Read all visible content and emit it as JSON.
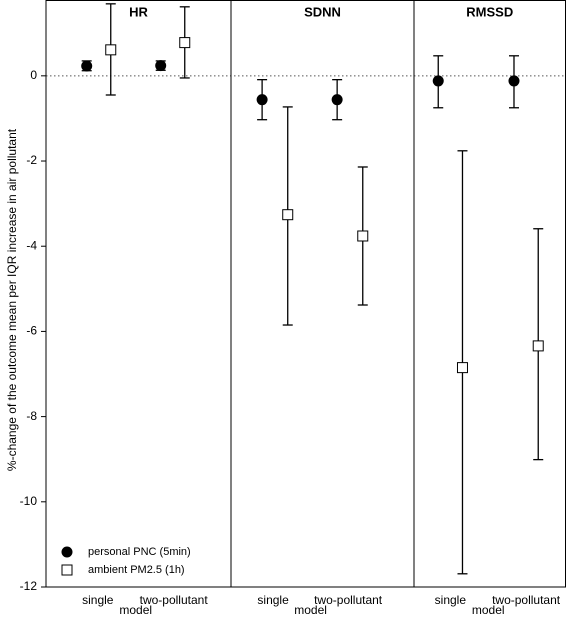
{
  "chart_data": {
    "type": "errorbar",
    "ylabel": "%-change of the outcome mean per IQR increase in air pollutant",
    "xlabel": "model",
    "categories": [
      "single",
      "two-pollutant"
    ],
    "ylim": [
      -12,
      1.78
    ],
    "yticks": [
      -12,
      -10,
      -8,
      -6,
      -4,
      -2,
      0
    ],
    "series": [
      {
        "name": "personal PNC (5min)",
        "marker": "circle",
        "color": "#000000"
      },
      {
        "name": "ambient PM2.5 (1h)",
        "marker": "square",
        "color": "#ffffff"
      }
    ],
    "panels": [
      {
        "title": "HR",
        "series": [
          {
            "values": [
              0.23,
              0.24
            ],
            "lower": [
              0.12,
              0.13
            ],
            "upper": [
              0.35,
              0.35
            ]
          },
          {
            "values": [
              0.61,
              0.78
            ],
            "lower": [
              -0.45,
              -0.05
            ],
            "upper": [
              1.69,
              1.62
            ]
          }
        ]
      },
      {
        "title": "SDNN",
        "series": [
          {
            "values": [
              -0.56,
              -0.56
            ],
            "lower": [
              -1.03,
              -1.03
            ],
            "upper": [
              -0.09,
              -0.09
            ]
          },
          {
            "values": [
              -3.26,
              -3.76
            ],
            "lower": [
              -5.85,
              -5.38
            ],
            "upper": [
              -0.73,
              -2.14
            ]
          }
        ]
      },
      {
        "title": "RMSSD",
        "series": [
          {
            "values": [
              -0.12,
              -0.12
            ],
            "lower": [
              -0.75,
              -0.75
            ],
            "upper": [
              0.47,
              0.47
            ]
          },
          {
            "values": [
              -6.85,
              -6.34
            ],
            "lower": [
              -11.69,
              -9.01
            ],
            "upper": [
              -1.76,
              -3.59
            ]
          }
        ]
      }
    ]
  }
}
